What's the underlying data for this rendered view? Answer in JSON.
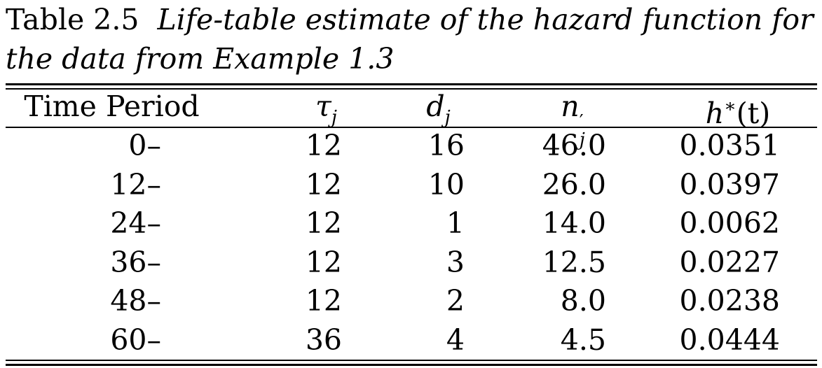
{
  "caption": {
    "label": "Table 2.5",
    "text_line1": "Life-table estimate of the hazard function for",
    "text_line2": "the data from Example 1.3"
  },
  "table": {
    "headers": {
      "period": "Time Period",
      "tau": "τ",
      "tau_sub": "j",
      "d": "d",
      "d_sub": "j",
      "n": "n",
      "n_sup": "′",
      "n_sub": "j",
      "h": "h",
      "h_sup": "∗",
      "h_arg": "(t)"
    },
    "rows": [
      {
        "period": "0–",
        "tau": "12",
        "d": "16",
        "n": "46.0",
        "h": "0.0351"
      },
      {
        "period": "12–",
        "tau": "12",
        "d": "10",
        "n": "26.0",
        "h": "0.0397"
      },
      {
        "period": "24–",
        "tau": "12",
        "d": "1",
        "n": "14.0",
        "h": "0.0062"
      },
      {
        "period": "36–",
        "tau": "12",
        "d": "3",
        "n": "12.5",
        "h": "0.0227"
      },
      {
        "period": "48–",
        "tau": "12",
        "d": "2",
        "n": "8.0",
        "h": "0.0238"
      },
      {
        "period": "60–",
        "tau": "36",
        "d": "4",
        "n": "4.5",
        "h": "0.0444"
      }
    ]
  }
}
